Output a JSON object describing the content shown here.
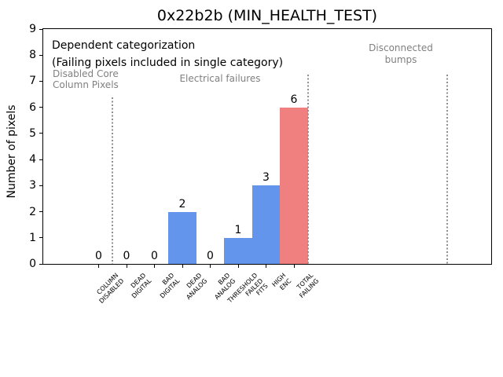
{
  "chart_data": {
    "type": "bar",
    "title": "0x22b2b (MIN_HEALTH_TEST)",
    "ylabel": "Number of pixels",
    "xlabel": "",
    "ylim": [
      0,
      9
    ],
    "yticks": [
      0,
      1,
      2,
      3,
      4,
      5,
      6,
      7,
      8,
      9
    ],
    "grid": false,
    "legend": null,
    "categories": [
      [
        "COLUMN",
        "DISABLED"
      ],
      [
        "DEAD",
        "DIGITAL"
      ],
      [
        "BAD",
        "DIGITAL"
      ],
      [
        "DEAD",
        "ANALOG"
      ],
      [
        "BAD",
        "ANALOG"
      ],
      [
        "THRESHOLD",
        "FAILED",
        "FITS"
      ],
      [
        "HIGH",
        "ENC"
      ],
      [
        "TOTAL",
        "FAILING"
      ]
    ],
    "values": [
      0,
      0,
      0,
      2,
      0,
      1,
      3,
      6
    ],
    "bar_labels": [
      "0",
      "0",
      "0",
      "2",
      "0",
      "1",
      "3",
      "6"
    ],
    "bar_colors": [
      "#6495ED",
      "#6495ED",
      "#6495ED",
      "#6495ED",
      "#6495ED",
      "#6495ED",
      "#6495ED",
      "#F08080"
    ],
    "separators_x": [
      0.5,
      7.5,
      12.5
    ],
    "separator_color": "#8f8f8f",
    "annotations": [
      {
        "name": "dependent",
        "lines": [
          "Dependent categorization",
          "(Failing pixels included in single category)"
        ],
        "color": "#000000"
      },
      {
        "name": "disabled-core",
        "lines": [
          "Disabled Core",
          "Column Pixels"
        ],
        "color": "#808080"
      },
      {
        "name": "electrical",
        "lines": [
          "Electrical failures"
        ],
        "color": "#808080"
      },
      {
        "name": "disconnected",
        "lines": [
          "Disconnected",
          "bumps"
        ],
        "color": "#808080"
      }
    ]
  }
}
